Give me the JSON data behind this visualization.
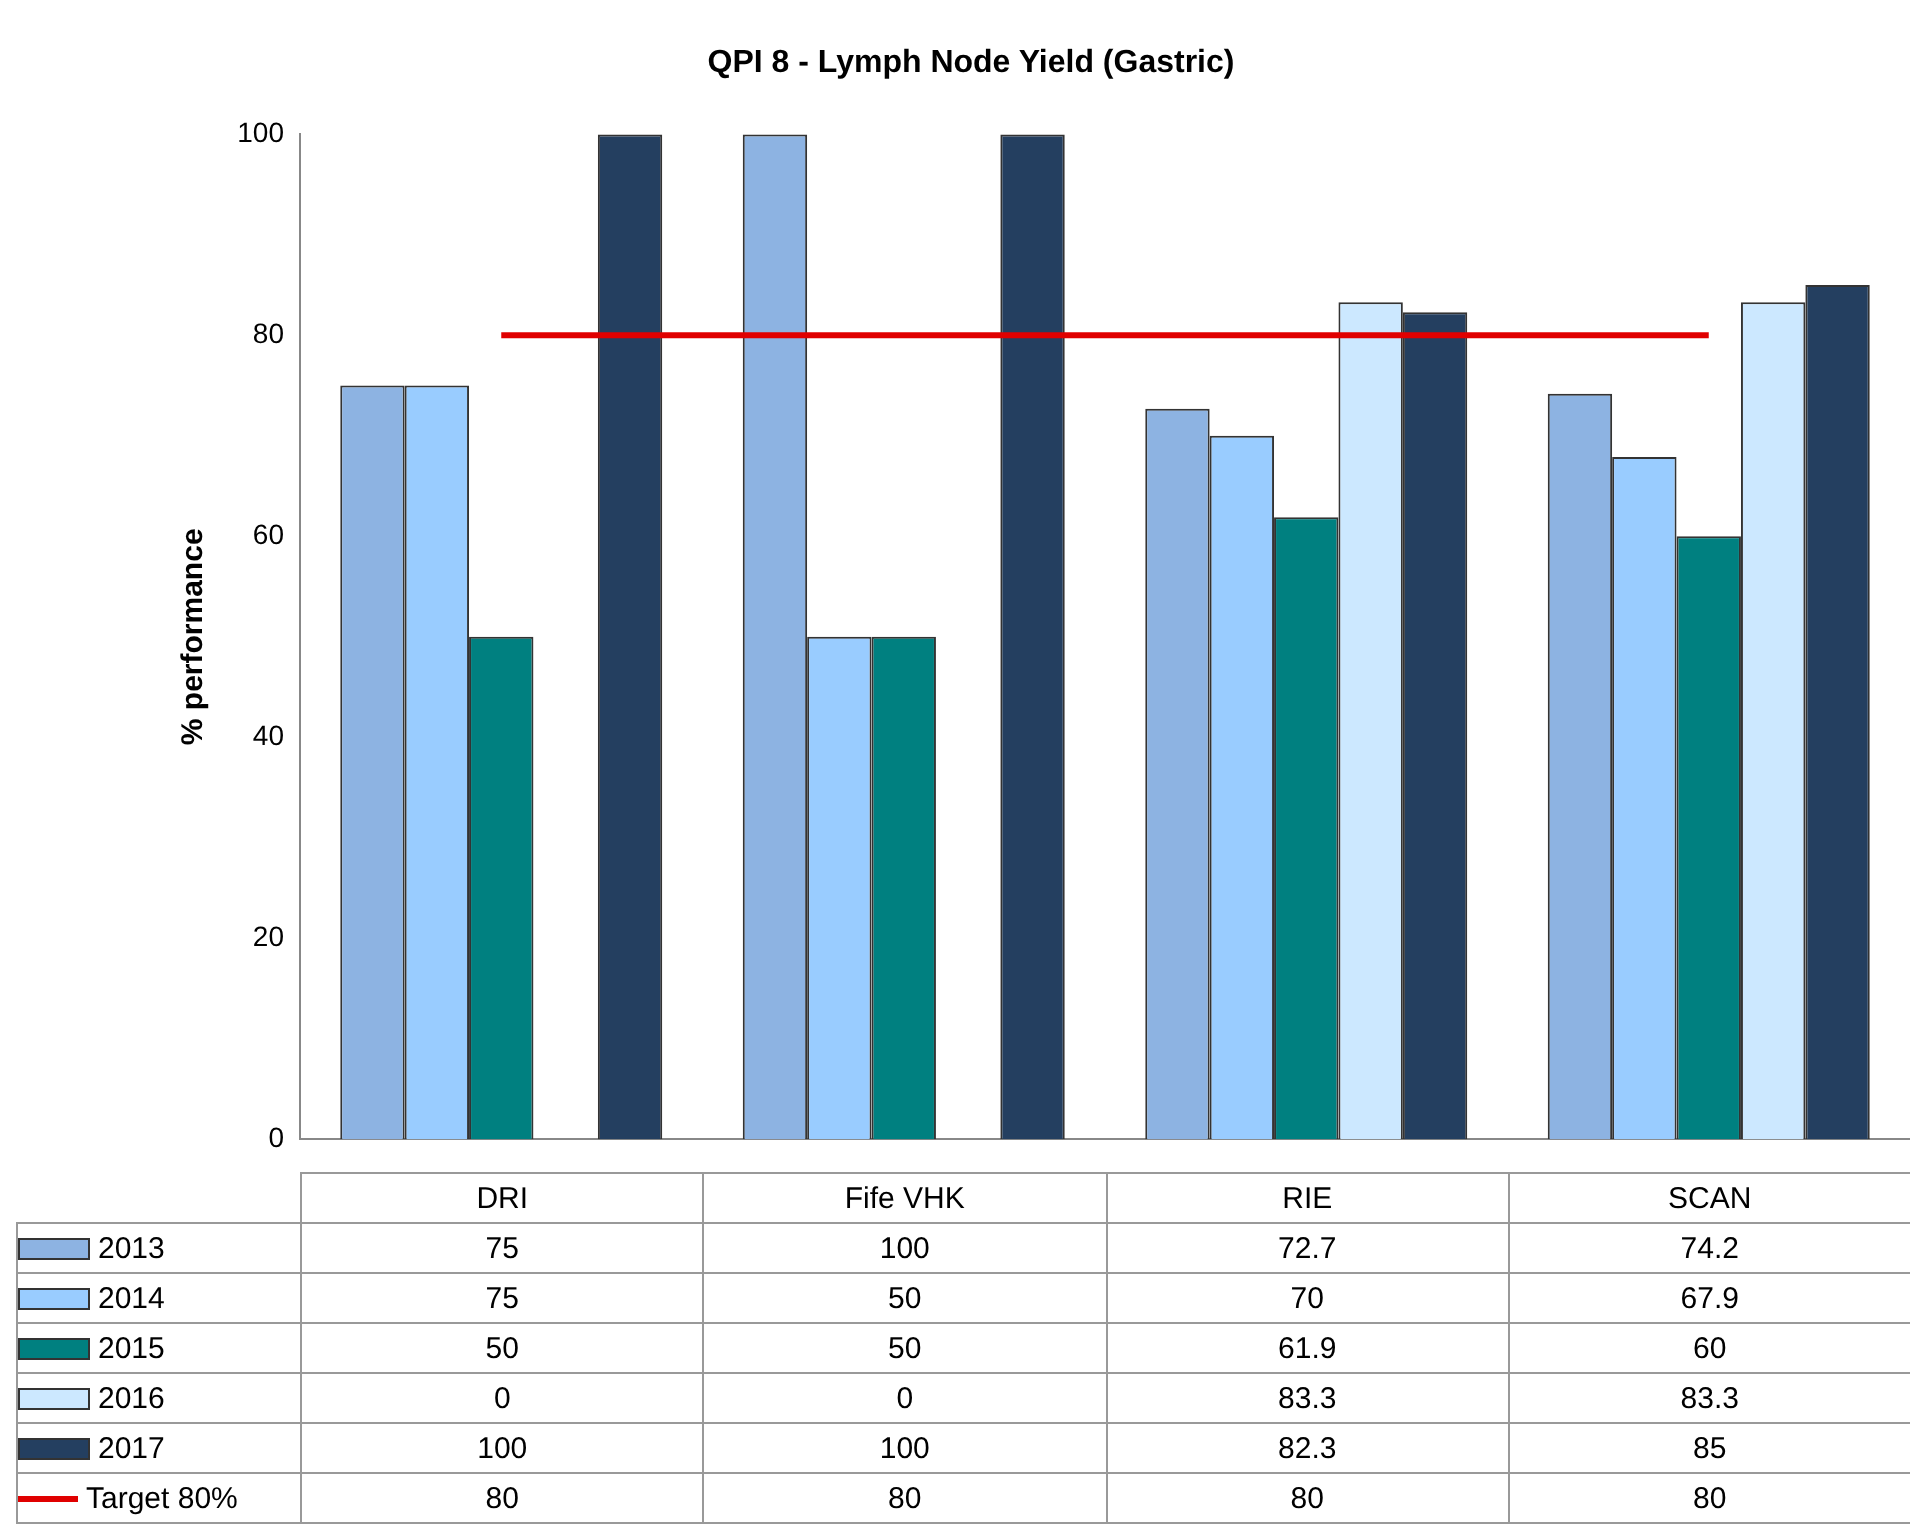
{
  "chart_data": {
    "type": "bar",
    "title": "QPI 8 - Lymph Node Yield (Gastric)",
    "ylabel": "% performance",
    "categories": [
      "DRI",
      "Fife VHK",
      "RIE",
      "SCAN"
    ],
    "series": [
      {
        "name": "2013",
        "color": "#8db3e2",
        "values": [
          75,
          100,
          72.7,
          74.2
        ]
      },
      {
        "name": "2014",
        "color": "#99ccff",
        "values": [
          75,
          50,
          70,
          67.9
        ]
      },
      {
        "name": "2015",
        "color": "#008080",
        "values": [
          50,
          50,
          61.9,
          60
        ]
      },
      {
        "name": "2016",
        "color": "#cce8ff",
        "values": [
          0,
          0,
          83.3,
          83.3
        ]
      },
      {
        "name": "2017",
        "color": "#243f60",
        "values": [
          100,
          100,
          82.3,
          85
        ]
      },
      {
        "name": "Target 80%",
        "type": "line",
        "color": "#e00000",
        "values": [
          80,
          80,
          80,
          80
        ]
      }
    ],
    "ylim": [
      0,
      100
    ],
    "yticks": [
      0,
      20,
      40,
      60,
      80,
      100
    ],
    "grid": false,
    "legend": "bottom",
    "data_labels": true,
    "marker": "none"
  }
}
